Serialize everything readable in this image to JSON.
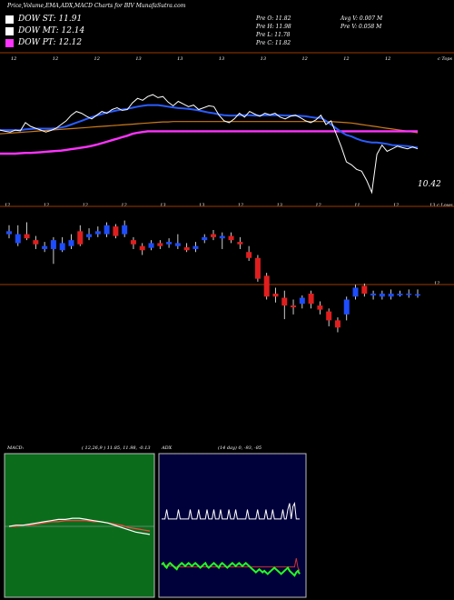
{
  "header": {
    "title": "Price,Volume,EMA,ADX,MACD Charts for BIV MunafaSutra.com"
  },
  "legend": [
    {
      "label": "DOW ST: 11.91",
      "color": "#ffffff"
    },
    {
      "label": "DOW MT: 12.14",
      "color": "#ffffff"
    },
    {
      "label": "DOW PT: 12.12",
      "color": "#ff33ff"
    }
  ],
  "ohlc": {
    "open": "Pre   O: 11.82",
    "high": "Pre   H: 11.98",
    "low": "Pre   L: 11.78",
    "close": "Pre   C: 11.82",
    "avg_volume": "Avg V: 0.007 M",
    "pre_volume": "Pre   V: 0.058 M"
  },
  "price_panel": {
    "top_label": "c Tops",
    "top_ticks": [
      "12",
      "12",
      "12",
      "13",
      "13",
      "13",
      "13",
      "12",
      "12",
      "12"
    ],
    "last_label": "10.42",
    "bottom_ticks": [
      "12",
      "12",
      "12",
      "12",
      "13",
      "13",
      "12",
      "13",
      "12",
      "11",
      "12"
    ],
    "bottom_right_label": "13 c Lows"
  },
  "candle_panel": {
    "level_label": "12"
  },
  "macd": {
    "label": "MACD:",
    "params": "( 12,26,9 ) 11.85, 11.98, -0.13"
  },
  "adx": {
    "label": "ADX",
    "params": "(14  day) 0, -93, -85"
  },
  "colors": {
    "ema_fast": "#2a5cff",
    "dow_pt": "#ff33ff",
    "ema_slow": "#cc7a1a",
    "macd_bg": "#0b6d1c",
    "adx_bg": "#00003a",
    "bull": "#1e4dff",
    "bear": "#e01e1e"
  },
  "chart_data": {
    "type": "line",
    "price_series": [
      12.05,
      12.02,
      12.0,
      12.05,
      12.03,
      12.25,
      12.15,
      12.1,
      12.05,
      12.0,
      12.04,
      12.1,
      12.2,
      12.3,
      12.45,
      12.55,
      12.5,
      12.42,
      12.35,
      12.45,
      12.55,
      12.5,
      12.6,
      12.65,
      12.58,
      12.6,
      12.78,
      12.9,
      12.85,
      12.95,
      13.0,
      12.92,
      12.95,
      12.8,
      12.7,
      12.82,
      12.75,
      12.68,
      12.72,
      12.6,
      12.65,
      12.7,
      12.68,
      12.45,
      12.3,
      12.25,
      12.35,
      12.5,
      12.4,
      12.55,
      12.48,
      12.42,
      12.5,
      12.46,
      12.5,
      12.4,
      12.35,
      12.42,
      12.45,
      12.38,
      12.3,
      12.25,
      12.32,
      12.45,
      12.2,
      12.3,
      11.95,
      11.6,
      11.2,
      11.12,
      11.0,
      10.95,
      10.7,
      10.38,
      11.4,
      11.65,
      11.48,
      11.55,
      11.62,
      11.58,
      11.55,
      11.6,
      11.55
    ],
    "ema_fast": [
      12.05,
      12.05,
      12.05,
      12.05,
      12.05,
      12.07,
      12.08,
      12.09,
      12.09,
      12.09,
      12.09,
      12.1,
      12.12,
      12.15,
      12.2,
      12.25,
      12.3,
      12.35,
      12.4,
      12.44,
      12.48,
      12.52,
      12.55,
      12.58,
      12.6,
      12.62,
      12.65,
      12.68,
      12.7,
      12.72,
      12.72,
      12.72,
      12.7,
      12.68,
      12.66,
      12.64,
      12.63,
      12.62,
      12.6,
      12.58,
      12.55,
      12.52,
      12.5,
      12.47,
      12.45,
      12.44,
      12.44,
      12.45,
      12.45,
      12.45,
      12.44,
      12.44,
      12.45,
      12.45,
      12.45,
      12.45,
      12.44,
      12.44,
      12.44,
      12.43,
      12.42,
      12.4,
      12.38,
      12.38,
      12.3,
      12.2,
      12.1,
      12.0,
      11.92,
      11.88,
      11.82,
      11.77,
      11.74,
      11.72,
      11.72,
      11.7,
      11.68,
      11.65,
      11.64,
      11.63,
      11.62,
      11.6,
      11.58
    ],
    "dow_pt": [
      11.42,
      11.42,
      11.42,
      11.42,
      11.43,
      11.44,
      11.44,
      11.45,
      11.46,
      11.47,
      11.48,
      11.49,
      11.5,
      11.52,
      11.54,
      11.56,
      11.58,
      11.6,
      11.63,
      11.66,
      11.7,
      11.74,
      11.78,
      11.82,
      11.86,
      11.9,
      11.95,
      11.98,
      12.0,
      12.02,
      12.02,
      12.02,
      12.02,
      12.02,
      12.02,
      12.02,
      12.02,
      12.02,
      12.02,
      12.02,
      12.02,
      12.02,
      12.02,
      12.02,
      12.02,
      12.02,
      12.02,
      12.02,
      12.02,
      12.02,
      12.02,
      12.02,
      12.02,
      12.02,
      12.02,
      12.02,
      12.02,
      12.02,
      12.02,
      12.02,
      12.02,
      12.02,
      12.02,
      12.02,
      12.02,
      12.02,
      12.02,
      12.02,
      12.02,
      12.02,
      12.02,
      12.02,
      12.02,
      12.02,
      12.02,
      12.02,
      12.02,
      12.02,
      12.02,
      12.02,
      12.02,
      12.02,
      12.02
    ],
    "ema_slow": [
      11.95,
      11.96,
      11.97,
      11.98,
      11.99,
      12.0,
      12.01,
      12.02,
      12.03,
      12.04,
      12.05,
      12.06,
      12.07,
      12.08,
      12.09,
      12.1,
      12.11,
      12.12,
      12.13,
      12.14,
      12.15,
      12.16,
      12.17,
      12.18,
      12.19,
      12.2,
      12.21,
      12.22,
      12.23,
      12.24,
      12.25,
      12.26,
      12.27,
      12.27,
      12.28,
      12.28,
      12.28,
      12.28,
      12.28,
      12.28,
      12.28,
      12.28,
      12.28,
      12.28,
      12.28,
      12.28,
      12.28,
      12.28,
      12.28,
      12.28,
      12.28,
      12.28,
      12.28,
      12.28,
      12.28,
      12.28,
      12.28,
      12.28,
      12.28,
      12.28,
      12.28,
      12.28,
      12.28,
      12.28,
      12.28,
      12.28,
      12.27,
      12.26,
      12.25,
      12.24,
      12.22,
      12.2,
      12.18,
      12.16,
      12.14,
      12.12,
      12.1,
      12.08,
      12.06,
      12.04,
      12.02,
      12.0,
      11.98
    ],
    "candles": [
      {
        "o": 12.55,
        "c": 12.6,
        "h": 12.7,
        "l": 12.48
      },
      {
        "o": 12.4,
        "c": 12.55,
        "h": 12.7,
        "l": 12.35
      },
      {
        "o": 12.55,
        "c": 12.48,
        "h": 12.75,
        "l": 12.45
      },
      {
        "o": 12.45,
        "c": 12.38,
        "h": 12.52,
        "l": 12.3
      },
      {
        "o": 12.3,
        "c": 12.35,
        "h": 12.42,
        "l": 12.25
      },
      {
        "o": 12.3,
        "c": 12.45,
        "h": 12.5,
        "l": 12.05
      },
      {
        "o": 12.28,
        "c": 12.4,
        "h": 12.5,
        "l": 12.25
      },
      {
        "o": 12.35,
        "c": 12.45,
        "h": 12.55,
        "l": 12.3
      },
      {
        "o": 12.6,
        "c": 12.38,
        "h": 12.7,
        "l": 12.35
      },
      {
        "o": 12.5,
        "c": 12.55,
        "h": 12.65,
        "l": 12.45
      },
      {
        "o": 12.55,
        "c": 12.6,
        "h": 12.68,
        "l": 12.5
      },
      {
        "o": 12.55,
        "c": 12.7,
        "h": 12.75,
        "l": 12.5
      },
      {
        "o": 12.68,
        "c": 12.52,
        "h": 12.72,
        "l": 12.48
      },
      {
        "o": 12.55,
        "c": 12.7,
        "h": 12.78,
        "l": 12.5
      },
      {
        "o": 12.45,
        "c": 12.38,
        "h": 12.5,
        "l": 12.3
      },
      {
        "o": 12.35,
        "c": 12.28,
        "h": 12.4,
        "l": 12.2
      },
      {
        "o": 12.32,
        "c": 12.4,
        "h": 12.45,
        "l": 12.28
      },
      {
        "o": 12.4,
        "c": 12.35,
        "h": 12.45,
        "l": 12.3
      },
      {
        "o": 12.38,
        "c": 12.42,
        "h": 12.48,
        "l": 12.32
      },
      {
        "o": 12.35,
        "c": 12.4,
        "h": 12.55,
        "l": 12.3
      },
      {
        "o": 12.33,
        "c": 12.28,
        "h": 12.4,
        "l": 12.25
      },
      {
        "o": 12.3,
        "c": 12.35,
        "h": 12.42,
        "l": 12.25
      },
      {
        "o": 12.45,
        "c": 12.5,
        "h": 12.55,
        "l": 12.4
      },
      {
        "o": 12.55,
        "c": 12.5,
        "h": 12.62,
        "l": 12.45
      },
      {
        "o": 12.48,
        "c": 12.52,
        "h": 12.58,
        "l": 12.3
      },
      {
        "o": 12.52,
        "c": 12.45,
        "h": 12.58,
        "l": 12.4
      },
      {
        "o": 12.42,
        "c": 12.38,
        "h": 12.5,
        "l": 12.3
      },
      {
        "o": 12.25,
        "c": 12.15,
        "h": 12.35,
        "l": 12.1
      },
      {
        "o": 12.15,
        "c": 11.8,
        "h": 12.2,
        "l": 11.75
      },
      {
        "o": 11.85,
        "c": 11.5,
        "h": 11.9,
        "l": 11.45
      },
      {
        "o": 11.55,
        "c": 11.5,
        "h": 11.65,
        "l": 11.4
      },
      {
        "o": 11.48,
        "c": 11.35,
        "h": 11.6,
        "l": 11.12
      },
      {
        "o": 11.35,
        "c": 11.32,
        "h": 11.45,
        "l": 11.2
      },
      {
        "o": 11.38,
        "c": 11.48,
        "h": 11.52,
        "l": 11.3
      },
      {
        "o": 11.55,
        "c": 11.38,
        "h": 11.6,
        "l": 11.3
      },
      {
        "o": 11.35,
        "c": 11.28,
        "h": 11.42,
        "l": 11.2
      },
      {
        "o": 11.25,
        "c": 11.1,
        "h": 11.3,
        "l": 11.0
      },
      {
        "o": 11.1,
        "c": 10.98,
        "h": 11.15,
        "l": 10.9
      },
      {
        "o": 11.2,
        "c": 11.45,
        "h": 11.5,
        "l": 11.1
      },
      {
        "o": 11.5,
        "c": 11.65,
        "h": 11.7,
        "l": 11.45
      },
      {
        "o": 11.68,
        "c": 11.55,
        "h": 11.72,
        "l": 11.5
      },
      {
        "o": 11.52,
        "c": 11.55,
        "h": 11.6,
        "l": 11.45
      },
      {
        "o": 11.5,
        "c": 11.55,
        "h": 11.6,
        "l": 11.45
      },
      {
        "o": 11.5,
        "c": 11.55,
        "h": 11.62,
        "l": 11.45
      },
      {
        "o": 11.52,
        "c": 11.55,
        "h": 11.6,
        "l": 11.5
      },
      {
        "o": 11.53,
        "c": 11.55,
        "h": 11.62,
        "l": 11.48
      },
      {
        "o": 11.53,
        "c": 11.54,
        "h": 11.62,
        "l": 11.48
      }
    ],
    "candle_level": 11.9,
    "macd_line": [
      0.0,
      0.01,
      0.01,
      0.02,
      0.03,
      0.04,
      0.05,
      0.06,
      0.06,
      0.07,
      0.07,
      0.06,
      0.05,
      0.04,
      0.03,
      0.01,
      -0.01,
      -0.03,
      -0.05,
      -0.06,
      -0.07
    ],
    "macd_signal": [
      0.0,
      0.0,
      0.01,
      0.01,
      0.02,
      0.03,
      0.04,
      0.04,
      0.05,
      0.05,
      0.05,
      0.05,
      0.04,
      0.04,
      0.03,
      0.02,
      0.01,
      -0.01,
      -0.02,
      -0.03,
      -0.04
    ],
    "adx_plus": [
      80,
      80,
      80,
      92,
      80,
      80,
      80,
      80,
      80,
      80,
      92,
      80,
      80,
      80,
      80,
      80,
      80,
      92,
      80,
      80,
      80,
      80,
      92,
      80,
      80,
      80,
      80,
      92,
      80,
      80,
      80,
      92,
      80,
      80,
      80,
      92,
      80,
      80,
      80,
      80,
      92,
      80,
      80,
      80,
      92,
      80,
      80,
      80,
      80,
      80,
      80,
      92,
      80,
      80,
      80,
      80,
      80,
      92,
      80,
      80,
      80,
      80,
      92,
      80,
      80,
      80,
      92,
      80,
      80,
      80,
      80,
      80,
      92,
      80,
      80,
      92,
      100,
      80,
      96,
      100,
      80,
      80,
      80
    ],
    "adx_minus": [
      22,
      24,
      20,
      18,
      22,
      24,
      22,
      20,
      18,
      16,
      20,
      22,
      24,
      22,
      20,
      22,
      24,
      22,
      20,
      22,
      24,
      22,
      20,
      18,
      20,
      22,
      24,
      20,
      18,
      20,
      22,
      24,
      22,
      20,
      18,
      22,
      24,
      22,
      20,
      18,
      20,
      22,
      24,
      22,
      20,
      22,
      24,
      22,
      20,
      22,
      24,
      22,
      20,
      18,
      16,
      14,
      12,
      14,
      16,
      14,
      12,
      14,
      12,
      10,
      12,
      14,
      16,
      18,
      16,
      14,
      12,
      10,
      12,
      14,
      16,
      18,
      14,
      12,
      10,
      8,
      12,
      14,
      10
    ],
    "adx_line": [
      22,
      22,
      21,
      21,
      21,
      20,
      20,
      20,
      19,
      19,
      19,
      19,
      19,
      19,
      19,
      19,
      19,
      19,
      19,
      19,
      19,
      19,
      19,
      19,
      19,
      19,
      19,
      19,
      19,
      19,
      19,
      19,
      19,
      19,
      19,
      19,
      19,
      19,
      19,
      19,
      19,
      19,
      19,
      19,
      19,
      19,
      19,
      19,
      19,
      19,
      19,
      19,
      19,
      19,
      19,
      19,
      19,
      19,
      19,
      19,
      19,
      19,
      19,
      19,
      19,
      19,
      19,
      19,
      19,
      19,
      19,
      19,
      19,
      19,
      19,
      19,
      19,
      19,
      19,
      19,
      30,
      18,
      14
    ]
  }
}
